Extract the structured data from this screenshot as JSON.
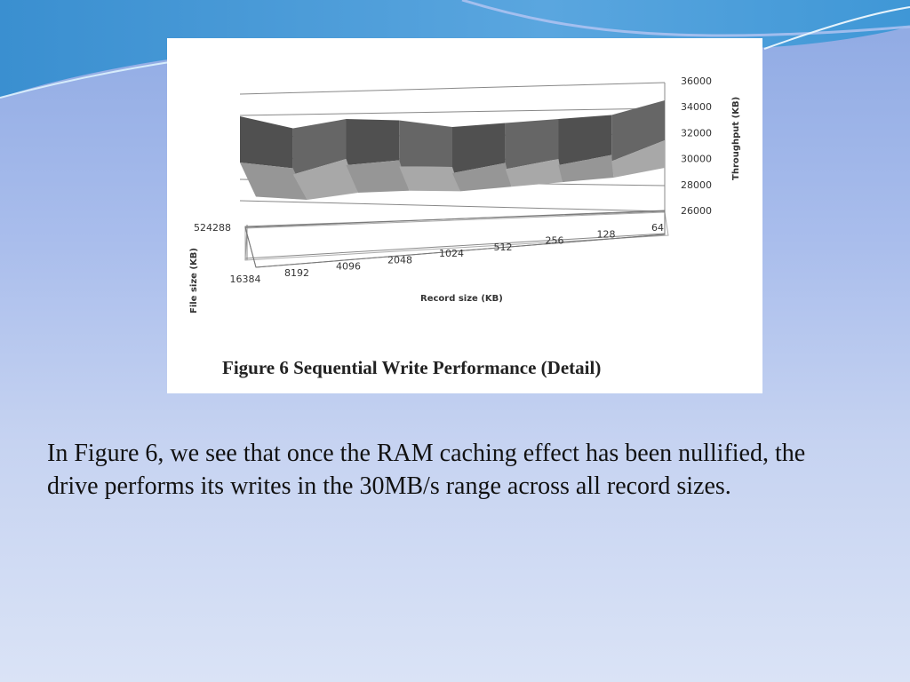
{
  "slide": {
    "body_text": "In Figure 6, we see that once the RAM caching effect has been nullified, the drive performs its writes in the 30MB/s range across all record sizes."
  },
  "chart_data": {
    "type": "area",
    "title": "Figure 6 Sequential Write Performance (Detail)",
    "xlabel": "Record size (KB)",
    "ylabel": "File size (KB)",
    "zlabel": "Throughput (KB)",
    "x_categories": [
      "16384",
      "8192",
      "4096",
      "2048",
      "1024",
      "512",
      "256",
      "128",
      "64"
    ],
    "y_categories": [
      "524288"
    ],
    "z_ticks": [
      "36000",
      "34000",
      "32000",
      "30000",
      "28000",
      "26000"
    ],
    "zlim": [
      26000,
      36000
    ],
    "series": [
      {
        "values": [
          33500,
          32500,
          33500,
          33500,
          33000,
          33500,
          34000,
          34500,
          36000
        ]
      }
    ],
    "colors": {
      "surface_front": "#a8a8a8",
      "surface_back": "#5e5e5e",
      "gridline": "#888888"
    }
  }
}
